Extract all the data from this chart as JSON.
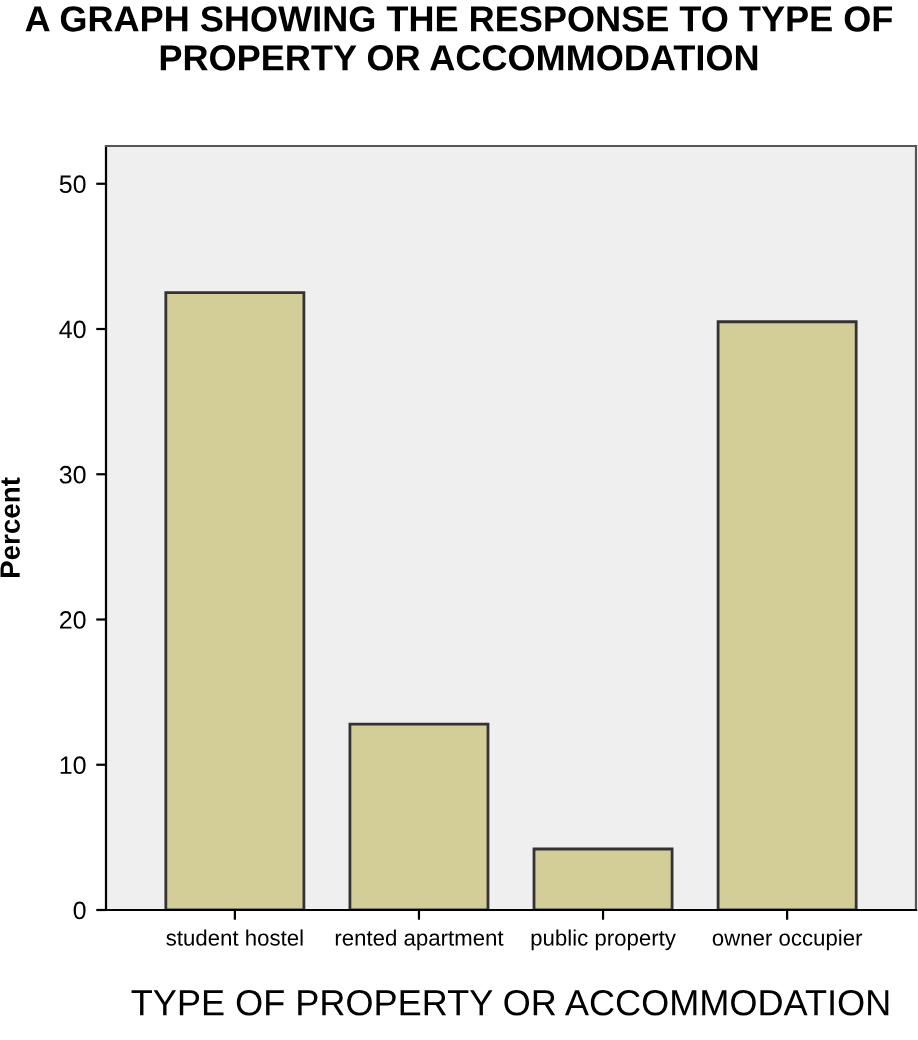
{
  "chart_data": {
    "type": "bar",
    "title": "A GRAPH SHOWING THE RESPONSE TO TYPE OF\nPROPERTY OR ACCOMMODATION",
    "xlabel": "TYPE OF PROPERTY OR ACCOMMODATION",
    "ylabel": "Percent",
    "categories": [
      "student hostel",
      "rented apartment",
      "public property",
      "owner occupier"
    ],
    "values": [
      42.5,
      12.8,
      4.2,
      40.5
    ],
    "color": "#d3ce97",
    "ylim": [
      0,
      52.6
    ],
    "yticks": [
      0,
      10,
      20,
      30,
      40,
      50
    ],
    "grid": false,
    "legend": false
  }
}
